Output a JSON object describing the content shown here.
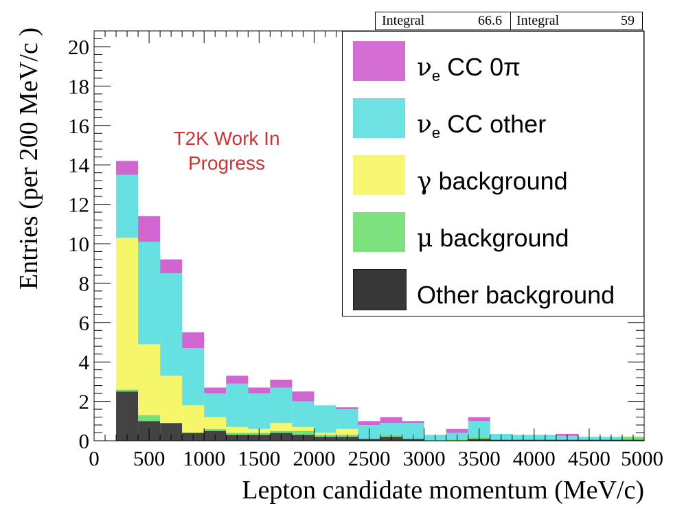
{
  "stat_boxes": [
    {
      "label": "Integral",
      "value": "66.6"
    },
    {
      "label": "Integral",
      "value": "59"
    }
  ],
  "watermark": {
    "line1": "T2K Work In",
    "line2": "Progress"
  },
  "legend": [
    {
      "symbol": "ν",
      "sub": "e",
      "text": " CC 0π",
      "color": "#cc55cc"
    },
    {
      "symbol": "ν",
      "sub": "e",
      "text": " CC other",
      "color": "#55dddd"
    },
    {
      "symbol": "γ",
      "sub": "",
      "text": " background",
      "color": "#f5f55a"
    },
    {
      "symbol": "μ",
      "sub": "",
      "text": " background",
      "color": "#66dd66"
    },
    {
      "symbol": "",
      "sub": "",
      "text": "Other background",
      "color": "#222222"
    }
  ],
  "chart_data": {
    "type": "bar",
    "stacked": true,
    "title": "",
    "xlabel": "Lepton candidate momentum (MeV/c)",
    "ylabel": "Entries (per 200 MeV/c )",
    "xlim": [
      0,
      5000
    ],
    "ylim": [
      0,
      20.8
    ],
    "x_ticks": [
      0,
      500,
      1000,
      1500,
      2000,
      2500,
      3000,
      3500,
      4000,
      4500,
      5000
    ],
    "x_tick_labels": [
      "0",
      "500",
      "1000",
      "1500",
      "2000",
      "2500",
      "3000",
      "3500",
      "4000",
      "4500",
      "5000"
    ],
    "y_ticks": [
      0,
      2,
      4,
      6,
      8,
      10,
      12,
      14,
      16,
      18,
      20
    ],
    "y_tick_labels": [
      "0",
      "2",
      "4",
      "6",
      "8",
      "10",
      "12",
      "14",
      "16",
      "18",
      "20"
    ],
    "bin_edges": [
      200,
      400,
      600,
      800,
      1000,
      1200,
      1400,
      1600,
      1800,
      2000,
      2200,
      2400,
      2600,
      2800,
      3000,
      3200,
      3400,
      3600,
      3800,
      4000,
      4200,
      4400,
      4600,
      4800,
      5000
    ],
    "series": [
      {
        "name": "Other background",
        "color": "#222222",
        "values": [
          2.5,
          1.0,
          0.9,
          0.4,
          0.5,
          0.3,
          0.3,
          0.4,
          0.3,
          0.2,
          0.2,
          0.1,
          0.2,
          0.1,
          0.0,
          0.0,
          0.1,
          0.05,
          0.05,
          0.05,
          0.05,
          0.05,
          0.05,
          0.05
        ]
      },
      {
        "name": "μ background",
        "color": "#66dd66",
        "values": [
          0.1,
          0.3,
          0.0,
          0.0,
          0.1,
          0.1,
          0.1,
          0.1,
          0.2,
          0.1,
          0.1,
          0.0,
          0.1,
          0.0,
          0.0,
          0.1,
          0.1,
          0.0,
          0.0,
          0.0,
          0.0,
          0.0,
          0.0,
          0.15
        ]
      },
      {
        "name": "γ background",
        "color": "#f5f55a",
        "values": [
          7.7,
          3.6,
          2.4,
          1.4,
          0.6,
          0.3,
          0.2,
          0.4,
          0.2,
          0.1,
          0.3,
          0.0,
          0.0,
          0.0,
          0.0,
          0.0,
          0.0,
          0.0,
          0.0,
          0.0,
          0.0,
          0.0,
          0.0,
          0.0
        ]
      },
      {
        "name": "νe CC other",
        "color": "#55dddd",
        "values": [
          3.2,
          5.2,
          5.2,
          2.9,
          1.2,
          2.2,
          1.8,
          1.8,
          1.3,
          1.4,
          1.0,
          0.7,
          0.6,
          0.8,
          0.3,
          0.3,
          0.8,
          0.3,
          0.25,
          0.25,
          0.2,
          0.15,
          0.15,
          0.0
        ]
      },
      {
        "name": "νe CC 0π",
        "color": "#cc55cc",
        "values": [
          0.7,
          1.3,
          0.7,
          0.8,
          0.3,
          0.4,
          0.3,
          0.4,
          0.5,
          0.0,
          0.1,
          0.2,
          0.3,
          0.1,
          0.0,
          0.2,
          0.2,
          0.0,
          0.0,
          0.0,
          0.1,
          0.0,
          0.0,
          0.0
        ]
      }
    ]
  }
}
